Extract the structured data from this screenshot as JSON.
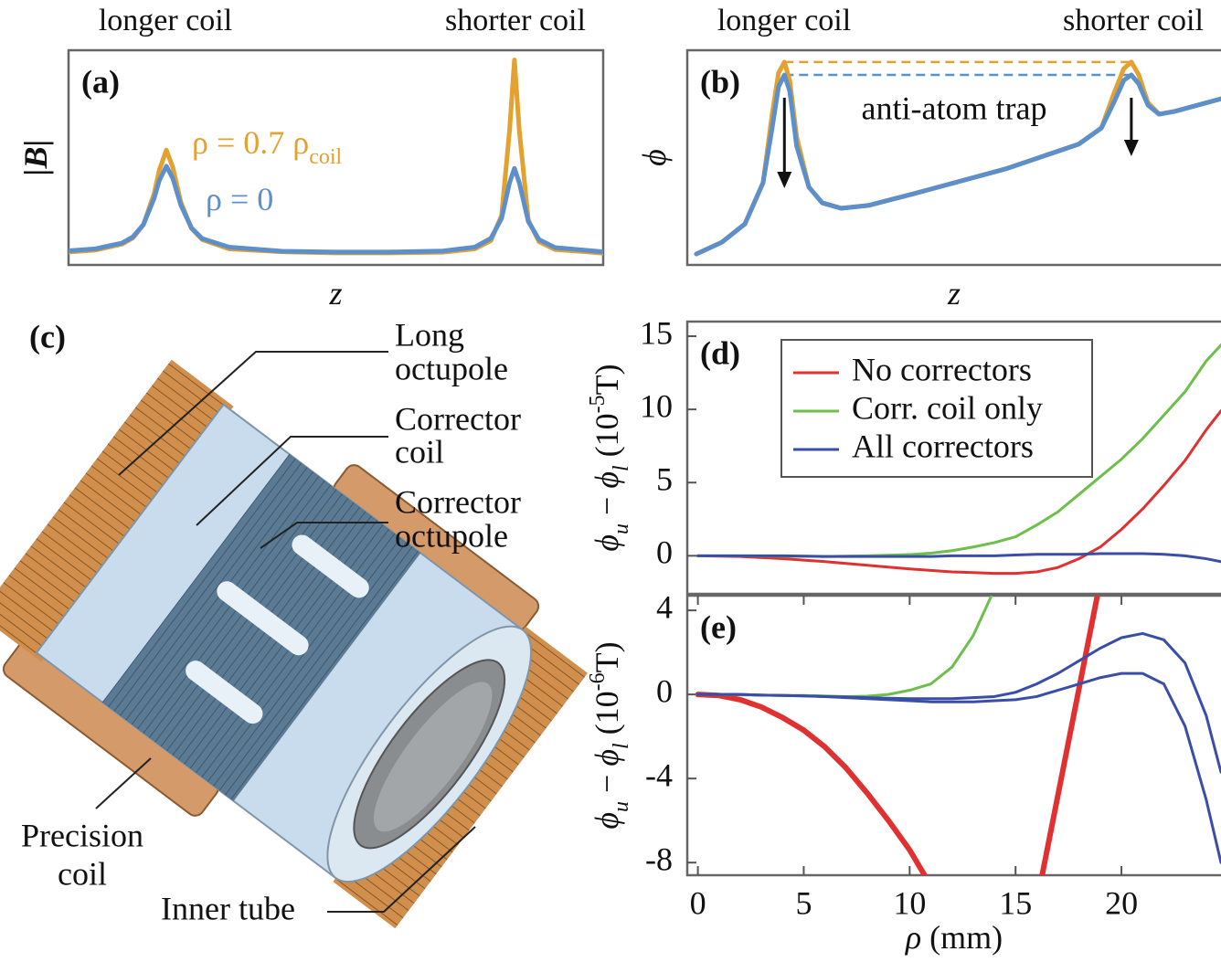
{
  "chart_data": [
    {
      "type": "line",
      "panel_label": "(a)",
      "top_labels": [
        "longer coil",
        "shorter coil"
      ],
      "ylabel": [
        {
          "text": "|B|",
          "italic": true,
          "bold": true
        }
      ],
      "xlabel": [
        {
          "text": "z",
          "italic": true
        }
      ],
      "x": [
        0,
        5,
        10,
        12,
        14,
        16,
        17,
        18.3,
        19.5,
        21,
        23,
        25,
        30,
        40,
        50,
        60,
        70,
        76,
        79,
        81,
        82.5,
        83.4,
        84.3,
        86,
        88,
        91,
        100
      ],
      "xlim": [
        0,
        100
      ],
      "ylim": [
        0,
        100
      ],
      "series": [
        {
          "name": "ρ = 0.7 ρ",
          "name_subscript": "coil",
          "color": "#e3a12f",
          "values": [
            6,
            6.9,
            9.7,
            12.5,
            18.7,
            33.2,
            44.4,
            53.5,
            45.5,
            29.3,
            17,
            11.8,
            7.5,
            6.1,
            5.6,
            5.6,
            5.9,
            7.5,
            11.3,
            23.1,
            63,
            95.5,
            63,
            20.9,
            10.8,
            7.2,
            5.5
          ]
        },
        {
          "name": "ρ = 0",
          "color": "#5d8fcb",
          "values": [
            6.6,
            7.5,
            10.2,
            13,
            18.8,
            31,
            39.5,
            46,
            40.4,
            27.9,
            17.2,
            12.3,
            8.3,
            6.4,
            6,
            6,
            6.5,
            8.3,
            12.4,
            21.7,
            38.4,
            45,
            38.4,
            20.2,
            11.8,
            8.1,
            6.1
          ]
        }
      ]
    },
    {
      "type": "line",
      "panel_label": "(b)",
      "top_labels": [
        "longer coil",
        "shorter coil"
      ],
      "ylabel": [
        {
          "text": "ϕ",
          "italic": true
        }
      ],
      "xlabel": [
        {
          "text": "z",
          "italic": true
        }
      ],
      "annotations": [
        "anti-atom trap"
      ],
      "peak_lines": true,
      "x": [
        1.7,
        6.5,
        10.8,
        14.2,
        15.9,
        17.1,
        18.2,
        19.2,
        20.5,
        22.8,
        25.3,
        28.8,
        33.9,
        42.5,
        59.6,
        73.3,
        77.6,
        80.1,
        81.8,
        83.2,
        84.6,
        86.3,
        88.4,
        91.3,
        100
      ],
      "xlim": [
        0,
        100
      ],
      "ylim": [
        0,
        100
      ],
      "series": [
        {
          "color": "#e3a12f",
          "values": [
            5.1,
            10.6,
            19.1,
            38.3,
            70.2,
            89.4,
            94.5,
            86,
            59.6,
            36.2,
            28.9,
            26.4,
            27.7,
            33.2,
            44.7,
            56.2,
            63.8,
            80.9,
            91.5,
            94.5,
            88.5,
            75.7,
            70.2,
            71.5,
            77.4
          ]
        },
        {
          "color": "#5d8fcb",
          "values": [
            5.1,
            10.6,
            19.1,
            38.3,
            63.8,
            83,
            88.5,
            80.9,
            55.3,
            36.2,
            28.9,
            26.4,
            27.7,
            33.2,
            44.7,
            56.2,
            63.8,
            76.6,
            86,
            88.5,
            84.3,
            74.5,
            70.2,
            71.5,
            77.4
          ]
        }
      ]
    },
    {
      "type": "line",
      "panel_label": "(d)",
      "legend": "upper-left",
      "ylabel": [
        {
          "text": "ϕ",
          "italic": true
        },
        {
          "text": "u",
          "italic": true,
          "sub": true
        },
        {
          "text": " − "
        },
        {
          "text": "ϕ",
          "italic": true
        },
        {
          "text": "l",
          "italic": true,
          "sub": true
        },
        {
          "text": " (10"
        },
        {
          "text": "-5",
          "sup": true
        },
        {
          "text": "T)"
        }
      ],
      "x": [
        0,
        2,
        4,
        6,
        8,
        10,
        11,
        12,
        13,
        14,
        15,
        16,
        17,
        18,
        19,
        20,
        21,
        22,
        23,
        24,
        24.7
      ],
      "xlim": [
        -0.5,
        24.7
      ],
      "ylim": [
        -2.6,
        16
      ],
      "yticks": [
        0,
        5,
        10,
        15
      ],
      "series": [
        {
          "name": "No correctors",
          "color": "#e03030",
          "values": [
            0,
            -0.05,
            -0.2,
            -0.4,
            -0.65,
            -0.9,
            -1,
            -1.1,
            -1.15,
            -1.2,
            -1.2,
            -1.1,
            -0.8,
            -0.2,
            0.6,
            1.8,
            3.2,
            4.8,
            6.5,
            8.6,
            9.9
          ]
        },
        {
          "name": "Corr. coil only",
          "color": "#6cbf4a",
          "values": [
            0,
            0,
            -0.03,
            -0.05,
            0,
            0.08,
            0.18,
            0.35,
            0.6,
            0.9,
            1.3,
            2.1,
            3,
            4.2,
            5.4,
            6.6,
            8,
            9.6,
            11.2,
            13.3,
            14.4
          ]
        },
        {
          "name": "All correctors",
          "color": "#3a4ea8",
          "values": [
            0,
            0,
            0,
            -0.05,
            -0.05,
            -0.05,
            -0.05,
            0,
            0,
            0,
            0.05,
            0.1,
            0.1,
            0.1,
            0.15,
            0.15,
            0.15,
            0.1,
            0,
            -0.2,
            -0.4
          ]
        }
      ]
    },
    {
      "type": "line",
      "panel_label": "(e)",
      "ylabel": [
        {
          "text": "ϕ",
          "italic": true
        },
        {
          "text": "u",
          "italic": true,
          "sub": true
        },
        {
          "text": " − "
        },
        {
          "text": "ϕ",
          "italic": true
        },
        {
          "text": "l",
          "italic": true,
          "sub": true
        },
        {
          "text": " (10"
        },
        {
          "text": "-6",
          "sup": true
        },
        {
          "text": "T)"
        }
      ],
      "xlabel": [
        {
          "text": "ρ",
          "italic": true
        },
        {
          "text": " (mm)"
        }
      ],
      "x": [
        0,
        1,
        2,
        3,
        4,
        5,
        6,
        7,
        8,
        9,
        10,
        11,
        12,
        13,
        14,
        15,
        16,
        17,
        18,
        19,
        20,
        21,
        22,
        23,
        24,
        24.7
      ],
      "xlim": [
        -0.5,
        24.7
      ],
      "ylim": [
        -8.6,
        4.7
      ],
      "xticks": [
        0,
        5,
        10,
        15,
        20
      ],
      "yticks": [
        -8,
        -4,
        0,
        4
      ],
      "series": [
        {
          "color": "#e03030",
          "values": [
            0,
            -0.05,
            -0.25,
            -0.6,
            -1.1,
            -1.7,
            -2.5,
            -3.5,
            -4.7,
            -6,
            -7.4,
            -9.1,
            null,
            null,
            null,
            null,
            -9.9,
            -4.8,
            0.3,
            5.4,
            null,
            null,
            null,
            null,
            null,
            null
          ]
        },
        {
          "color": "#6cbf4a",
          "values": [
            0,
            0,
            -0.02,
            -0.03,
            -0.05,
            -0.05,
            -0.07,
            -0.1,
            -0.08,
            0,
            0.2,
            0.5,
            1.3,
            2.8,
            5,
            null,
            null,
            null,
            null,
            null,
            null,
            null,
            null,
            null,
            null,
            null
          ]
        },
        {
          "color": "#3a4ea8",
          "values": [
            0,
            0,
            0,
            -0.03,
            -0.05,
            -0.07,
            -0.1,
            -0.12,
            -0.15,
            -0.18,
            -0.2,
            -0.2,
            -0.2,
            -0.15,
            -0.1,
            0.1,
            0.5,
            1,
            1.6,
            2.2,
            2.7,
            2.9,
            2.6,
            1.5,
            -1,
            -3.7
          ]
        },
        {
          "color": "#3a4ea8",
          "values": [
            0,
            0,
            0,
            -0.03,
            -0.05,
            -0.07,
            -0.1,
            -0.15,
            -0.2,
            -0.25,
            -0.3,
            -0.35,
            -0.35,
            -0.35,
            -0.3,
            -0.25,
            -0.1,
            0.2,
            0.5,
            0.8,
            1,
            1,
            0.5,
            -1.5,
            -5,
            -8
          ]
        }
      ]
    }
  ],
  "diagram": {
    "panel_label": "(c)",
    "labels": [
      {
        "lines": [
          "Long",
          "octupole"
        ]
      },
      {
        "lines": [
          "Corrector",
          "coil"
        ]
      },
      {
        "lines": [
          "Corrector",
          "octupole"
        ]
      },
      {
        "lines": [
          "Precision",
          "coil"
        ]
      },
      {
        "lines": [
          "Inner tube"
        ]
      }
    ]
  }
}
